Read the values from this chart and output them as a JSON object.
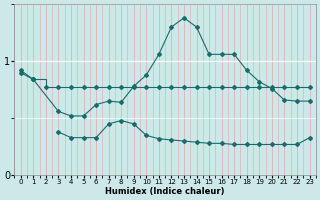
{
  "xlabel": "Humidex (Indice chaleur)",
  "bg_color": "#cce8e8",
  "line_color": "#1a6b6b",
  "xlim": [
    -0.5,
    23.5
  ],
  "ylim": [
    0,
    1.5
  ],
  "yticks": [
    0,
    1
  ],
  "xticks": [
    0,
    1,
    2,
    3,
    4,
    5,
    6,
    7,
    8,
    9,
    10,
    11,
    12,
    13,
    14,
    15,
    16,
    17,
    18,
    19,
    20,
    21,
    22,
    23
  ],
  "line1_x": [
    0,
    1,
    2,
    3,
    4,
    5,
    6,
    7,
    8,
    9,
    10,
    11,
    12,
    13,
    14,
    15,
    16,
    17,
    18,
    19,
    20,
    21,
    22,
    23
  ],
  "line1_y": [
    0.92,
    0.84,
    0.77,
    0.77,
    0.77,
    0.77,
    0.77,
    0.77,
    0.77,
    0.77,
    0.77,
    0.77,
    0.77,
    0.77,
    0.77,
    0.77,
    0.77,
    0.77,
    0.77,
    0.77,
    0.77,
    0.77,
    0.77,
    0.77
  ],
  "line2_x": [
    0,
    1,
    3,
    4,
    5,
    6,
    7,
    8,
    9,
    10,
    11,
    12,
    13,
    14,
    15,
    16,
    17,
    18,
    19,
    20,
    21,
    22,
    23
  ],
  "line2_y": [
    0.9,
    0.84,
    0.56,
    0.52,
    0.52,
    0.62,
    0.65,
    0.64,
    0.78,
    0.88,
    1.06,
    1.3,
    1.38,
    1.3,
    1.06,
    1.06,
    1.06,
    0.92,
    0.82,
    0.76,
    0.66,
    0.65,
    0.65
  ],
  "line3_x_pts": [
    3,
    4,
    5,
    6,
    7,
    8,
    9,
    10,
    11,
    12,
    13,
    14,
    15,
    16,
    17,
    18,
    19,
    20,
    21,
    22,
    23
  ],
  "line3_y_pts": [
    0.38,
    0.33,
    0.33,
    0.33,
    0.45,
    0.48,
    0.45,
    0.35,
    0.32,
    0.31,
    0.3,
    0.29,
    0.28,
    0.28,
    0.27,
    0.27,
    0.27,
    0.27,
    0.27,
    0.27,
    0.33
  ]
}
